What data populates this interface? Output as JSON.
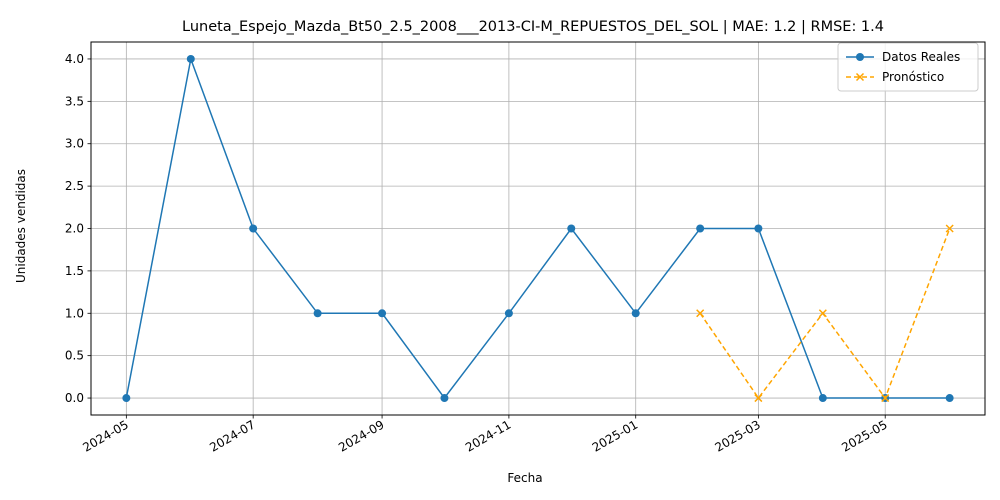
{
  "chart_data": {
    "type": "line",
    "title": "Luneta_Espejo_Mazda_Bt50_2.5_2008___2013-CI-M_REPUESTOS_DEL_SOL | MAE: 1.2 | RMSE: 1.4",
    "xlabel": "Fecha",
    "ylabel": "Unidades vendidas",
    "ylim": [
      -0.2,
      4.2
    ],
    "xlim": [
      "2024-04-14",
      "2025-06-18"
    ],
    "y_ticks": [
      "0.0",
      "0.5",
      "1.0",
      "1.5",
      "2.0",
      "2.5",
      "3.0",
      "3.5",
      "4.0"
    ],
    "x_ticks": [
      "2024-05",
      "2024-07",
      "2024-09",
      "2024-11",
      "2025-01",
      "2025-03",
      "2025-05"
    ],
    "grid": true,
    "legend_position": "top-right",
    "series": [
      {
        "name": "Datos Reales",
        "color": "#1f77b4",
        "line_style": "solid",
        "marker": "circle",
        "x": [
          "2024-05-01",
          "2024-06-01",
          "2024-07-01",
          "2024-08-01",
          "2024-09-01",
          "2024-10-01",
          "2024-11-01",
          "2024-12-01",
          "2025-01-01",
          "2025-02-01",
          "2025-03-01",
          "2025-04-01",
          "2025-05-01",
          "2025-06-01"
        ],
        "values": [
          0,
          4,
          2,
          1,
          1,
          0,
          1,
          2,
          1,
          2,
          2,
          0,
          0,
          0
        ]
      },
      {
        "name": "Pronóstico",
        "color": "#ffa500",
        "line_style": "dashed",
        "marker": "x",
        "x": [
          "2025-02-01",
          "2025-03-01",
          "2025-04-01",
          "2025-05-01",
          "2025-06-01"
        ],
        "values": [
          1,
          0,
          1,
          0,
          2
        ]
      }
    ]
  }
}
